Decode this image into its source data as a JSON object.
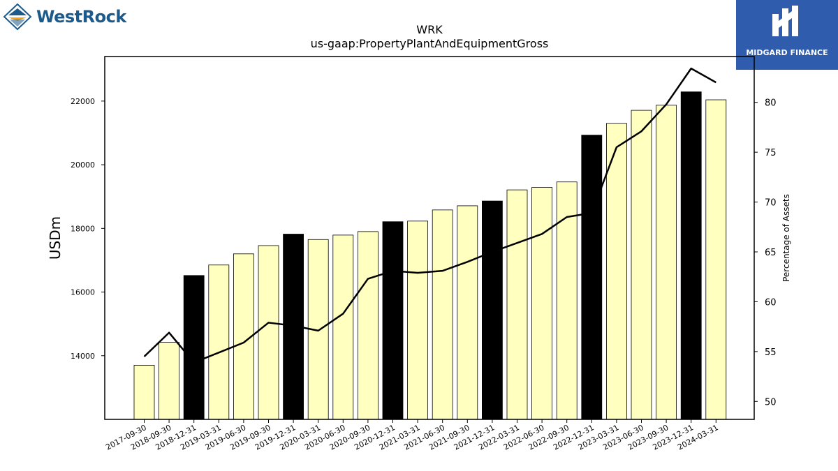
{
  "logos": {
    "left": {
      "text": "WestRock",
      "icon": "westrock-diamond-icon",
      "color": "#1c5a8c",
      "accent": "#f0a21e"
    },
    "right": {
      "text": "MIDGARD FINANCE",
      "icon": "midgard-mark-icon",
      "color": "#2f5cad"
    }
  },
  "chart_data": {
    "type": "bar",
    "title": "WRK",
    "subtitle": "us-gaap:PropertyPlantAndEquipmentGross",
    "ylabel": "USDm",
    "y2label": "Percentage of Assets",
    "ylim": [
      12000,
      23400
    ],
    "y2lim": [
      48.2,
      84.6
    ],
    "yticks": [
      14000,
      16000,
      18000,
      20000,
      22000
    ],
    "y2ticks": [
      50,
      55,
      60,
      65,
      70,
      75,
      80
    ],
    "categories": [
      "2017-09-30",
      "2018-09-30",
      "2018-12-31",
      "2019-03-31",
      "2019-06-30",
      "2019-09-30",
      "2019-12-31",
      "2020-03-31",
      "2020-06-30",
      "2020-09-30",
      "2020-12-31",
      "2021-03-31",
      "2021-06-30",
      "2021-09-30",
      "2021-12-31",
      "2022-03-31",
      "2022-06-30",
      "2022-09-30",
      "2022-12-31",
      "2023-03-31",
      "2023-06-30",
      "2023-09-30",
      "2023-12-31",
      "2024-03-31"
    ],
    "values": [
      13700,
      14420,
      16520,
      16850,
      17200,
      17460,
      17820,
      17650,
      17790,
      17900,
      18210,
      18230,
      18580,
      18710,
      18860,
      19210,
      19290,
      19460,
      20930,
      21300,
      21710,
      21870,
      22290,
      22040
    ],
    "highlight": [
      false,
      false,
      true,
      false,
      false,
      false,
      true,
      false,
      false,
      false,
      true,
      false,
      false,
      false,
      true,
      false,
      false,
      false,
      true,
      false,
      false,
      false,
      true,
      false
    ],
    "series": [
      {
        "values": [
          54.5,
          56.9,
          53.9,
          54.9,
          55.9,
          57.9,
          57.6,
          57.1,
          58.8,
          62.3,
          63.1,
          62.9,
          63.1,
          64.0,
          65.0,
          65.9,
          66.8,
          68.5,
          68.9,
          75.5,
          77.1,
          79.8,
          83.4,
          82.0
        ]
      }
    ],
    "colors": {
      "bar": "#ffffbf",
      "bar_highlight": "#000000",
      "bar_edge": "#000000",
      "line": "#000000"
    },
    "grid": false,
    "legend": "none"
  }
}
